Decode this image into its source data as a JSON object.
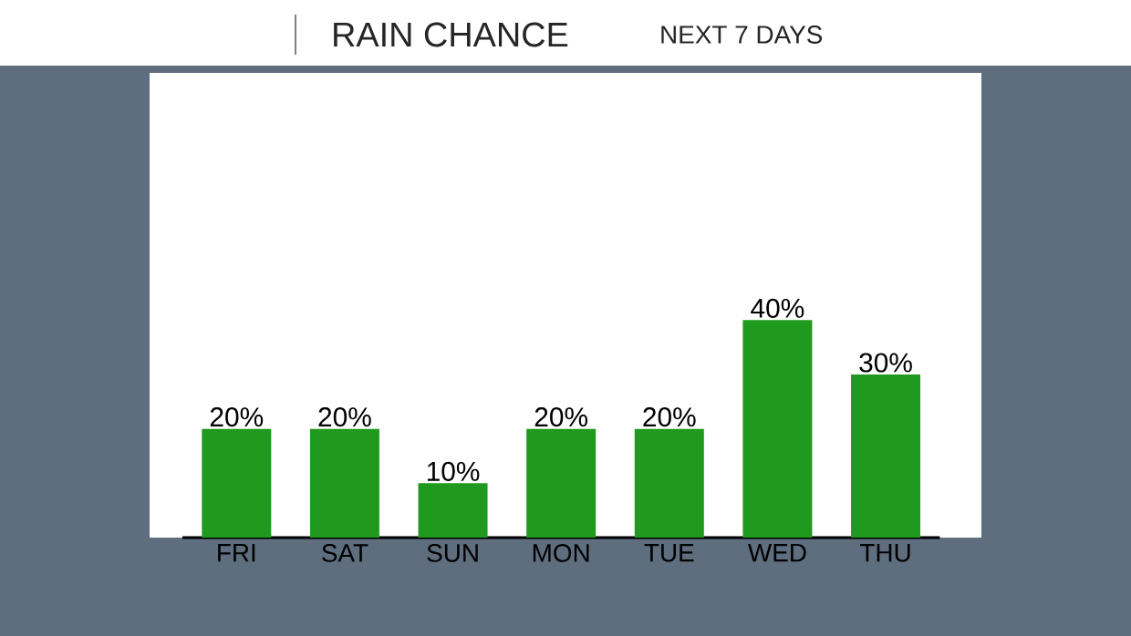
{
  "chart_data": {
    "type": "bar",
    "title": "RAIN CHANCE",
    "subtitle": "NEXT 7 DAYS",
    "categories": [
      "FRI",
      "SAT",
      "SUN",
      "MON",
      "TUE",
      "WED",
      "THU"
    ],
    "values": [
      20,
      20,
      10,
      20,
      20,
      40,
      30
    ],
    "value_labels": [
      "20%",
      "20%",
      "10%",
      "20%",
      "20%",
      "40%",
      "30%"
    ],
    "color": "#1f9a1f"
  }
}
